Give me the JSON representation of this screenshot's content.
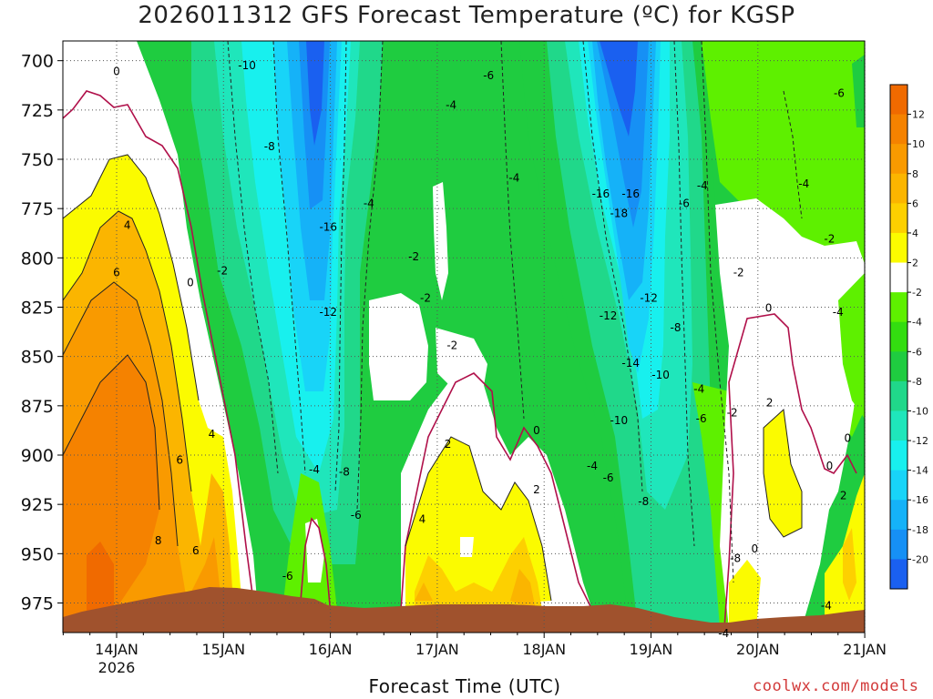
{
  "title": "2026011312 GFS Forecast Temperature (ºC) for KGSP",
  "xlabel": "Forecast Time (UTC)",
  "credit": "coolwx.com/models",
  "chart_data": {
    "type": "contour",
    "title": "2026011312 GFS Forecast Temperature (ºC) for KGSP",
    "xlabel": "Forecast Time (UTC)",
    "ylabel": "",
    "x_ticks": [
      "14JAN",
      "15JAN",
      "16JAN",
      "17JAN",
      "18JAN",
      "19JAN",
      "20JAN",
      "21JAN"
    ],
    "x_year_label": "2026",
    "y_ticks": [
      700,
      725,
      750,
      775,
      800,
      825,
      850,
      875,
      900,
      925,
      950,
      975
    ],
    "y_range": [
      690,
      990
    ],
    "y_scale": "pressure (hPa), inverted",
    "grid": true,
    "colorbar": {
      "levels": [
        12,
        10,
        8,
        6,
        4,
        2,
        -2,
        -4,
        -6,
        -8,
        -10,
        -12,
        -14,
        -16,
        -18,
        -20
      ],
      "colors": [
        "#f06a00",
        "#f58200",
        "#f99a00",
        "#fbb500",
        "#fdd000",
        "#fbfb00",
        "#ffffff",
        "#5ef000",
        "#33dd10",
        "#1fcc40",
        "#20d88a",
        "#1fe6bb",
        "#18f0ee",
        "#18d4f8",
        "#15b2f8",
        "#1690f5",
        "#1a60f0"
      ]
    },
    "contour_labels": [
      {
        "v": "0",
        "day": 0.0,
        "p": 705
      },
      {
        "v": "4",
        "day": 0.1,
        "p": 783
      },
      {
        "v": "6",
        "day": 0.0,
        "p": 807
      },
      {
        "v": "8",
        "day": 0.39,
        "p": 943
      },
      {
        "v": "6",
        "day": 0.59,
        "p": 902
      },
      {
        "v": "0",
        "day": 0.69,
        "p": 812
      },
      {
        "v": "-2",
        "day": 0.99,
        "p": 806
      },
      {
        "v": "4",
        "day": 0.89,
        "p": 889
      },
      {
        "v": "6",
        "day": 0.74,
        "p": 948
      },
      {
        "v": "-10",
        "day": 1.22,
        "p": 702
      },
      {
        "v": "-8",
        "day": 1.43,
        "p": 743
      },
      {
        "v": "-16",
        "day": 1.98,
        "p": 784
      },
      {
        "v": "-12",
        "day": 1.98,
        "p": 827
      },
      {
        "v": "-4",
        "day": 1.85,
        "p": 907
      },
      {
        "v": "-8",
        "day": 2.13,
        "p": 908
      },
      {
        "v": "-6",
        "day": 2.24,
        "p": 930
      },
      {
        "v": "-6",
        "day": 1.6,
        "p": 961
      },
      {
        "v": "-4",
        "day": 2.36,
        "p": 772
      },
      {
        "v": "-4",
        "day": 3.13,
        "p": 722
      },
      {
        "v": "-6",
        "day": 3.48,
        "p": 707
      },
      {
        "v": "-2",
        "day": 2.78,
        "p": 799
      },
      {
        "v": "-2",
        "day": 2.89,
        "p": 820
      },
      {
        "v": "-2",
        "day": 3.14,
        "p": 844
      },
      {
        "v": "2",
        "day": 3.1,
        "p": 894
      },
      {
        "v": "4",
        "day": 2.86,
        "p": 932
      },
      {
        "v": "-4",
        "day": 3.72,
        "p": 759
      },
      {
        "v": "0",
        "day": 3.93,
        "p": 887
      },
      {
        "v": "2",
        "day": 3.93,
        "p": 917
      },
      {
        "v": "-16",
        "day": 4.53,
        "p": 767
      },
      {
        "v": "-16",
        "day": 4.81,
        "p": 767
      },
      {
        "v": "-18",
        "day": 4.7,
        "p": 777
      },
      {
        "v": "-12",
        "day": 4.98,
        "p": 820
      },
      {
        "v": "-12",
        "day": 4.6,
        "p": 829
      },
      {
        "v": "-14",
        "day": 4.81,
        "p": 853
      },
      {
        "v": "-10",
        "day": 5.09,
        "p": 859
      },
      {
        "v": "-10",
        "day": 4.7,
        "p": 882
      },
      {
        "v": "-8",
        "day": 5.23,
        "p": 835
      },
      {
        "v": "-4",
        "day": 4.45,
        "p": 905
      },
      {
        "v": "-6",
        "day": 4.6,
        "p": 911
      },
      {
        "v": "-8",
        "day": 4.93,
        "p": 923
      },
      {
        "v": "-4",
        "day": 5.48,
        "p": 763
      },
      {
        "v": "-6",
        "day": 5.31,
        "p": 772
      },
      {
        "v": "-4",
        "day": 5.45,
        "p": 866
      },
      {
        "v": "-6",
        "day": 5.47,
        "p": 881
      },
      {
        "v": "-2",
        "day": 5.76,
        "p": 878
      },
      {
        "v": "-2",
        "day": 5.82,
        "p": 807
      },
      {
        "v": "0",
        "day": 6.1,
        "p": 825
      },
      {
        "v": "2",
        "day": 6.11,
        "p": 873
      },
      {
        "v": "-8",
        "day": 5.79,
        "p": 952
      },
      {
        "v": "0",
        "day": 5.97,
        "p": 947
      },
      {
        "v": "-4",
        "day": 5.68,
        "p": 990
      },
      {
        "v": "-4",
        "day": 6.43,
        "p": 762
      },
      {
        "v": "-6",
        "day": 6.76,
        "p": 716
      },
      {
        "v": "-2",
        "day": 6.67,
        "p": 790
      },
      {
        "v": "-4",
        "day": 6.75,
        "p": 827
      },
      {
        "v": "0",
        "day": 6.84,
        "p": 891
      },
      {
        "v": "0",
        "day": 6.67,
        "p": 905
      },
      {
        "v": "2",
        "day": 6.8,
        "p": 920
      },
      {
        "v": "-4",
        "day": 6.64,
        "p": 976
      }
    ]
  }
}
